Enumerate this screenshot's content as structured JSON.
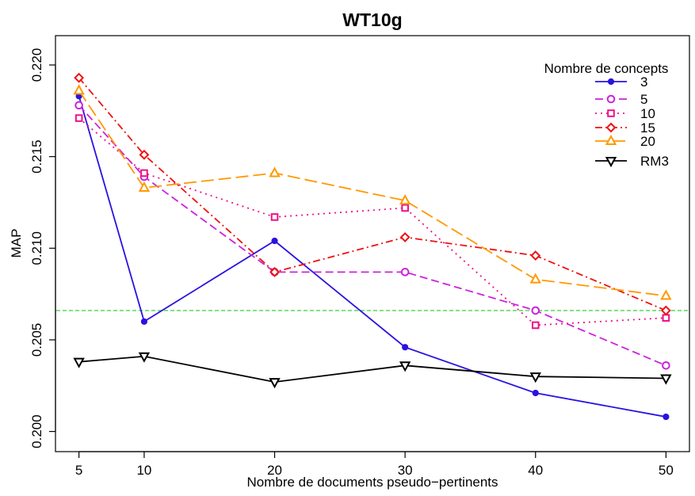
{
  "chart_data": {
    "type": "line",
    "title": "WT10g",
    "xlabel": "Nombre de documents pseudo−pertinents",
    "ylabel": "MAP",
    "x": [
      5,
      10,
      20,
      30,
      40,
      50
    ],
    "x_ticks": [
      "5",
      "10",
      "20",
      "30",
      "40",
      "50"
    ],
    "y_ticks": [
      "0.200",
      "0.205",
      "0.210",
      "0.215",
      "0.220"
    ],
    "xlim": [
      3.2,
      51.8
    ],
    "ylim": [
      0.1989,
      0.2216
    ],
    "grid": false,
    "legend": {
      "title": "Nombre de concepts",
      "position": "top-right"
    },
    "series": [
      {
        "name": "3",
        "values": [
          0.2183,
          0.206,
          0.2104,
          0.2046,
          0.2021,
          0.2008
        ],
        "color": "#2a12e0",
        "dash": "",
        "marker": "dot"
      },
      {
        "name": "5",
        "values": [
          0.2178,
          0.2139,
          0.2087,
          0.2087,
          0.2066,
          0.2036
        ],
        "color": "#cc22dd",
        "dash": "10,5",
        "marker": "circle"
      },
      {
        "name": "10",
        "values": [
          0.2171,
          0.2141,
          0.2117,
          0.2122,
          0.2058,
          0.2062
        ],
        "color": "#ee1188",
        "dash": "2,5",
        "marker": "square"
      },
      {
        "name": "15",
        "values": [
          0.2193,
          0.2151,
          0.2087,
          0.2106,
          0.2096,
          0.2066
        ],
        "color": "#ee1111",
        "dash": "9,4,2,4",
        "marker": "diamond"
      },
      {
        "name": "20",
        "values": [
          0.2186,
          0.2133,
          0.2141,
          0.2126,
          0.2083,
          0.2074
        ],
        "color": "#ff9900",
        "dash": "16,6",
        "marker": "triangle"
      },
      {
        "name": "RM3",
        "values": [
          0.2038,
          0.2041,
          0.2027,
          0.2036,
          0.203,
          0.2029
        ],
        "color": "#000000",
        "dash": "",
        "marker": "triangle-down"
      }
    ],
    "baseline": {
      "value": 0.2066,
      "color": "#22cc22",
      "dash": "5,3"
    }
  }
}
